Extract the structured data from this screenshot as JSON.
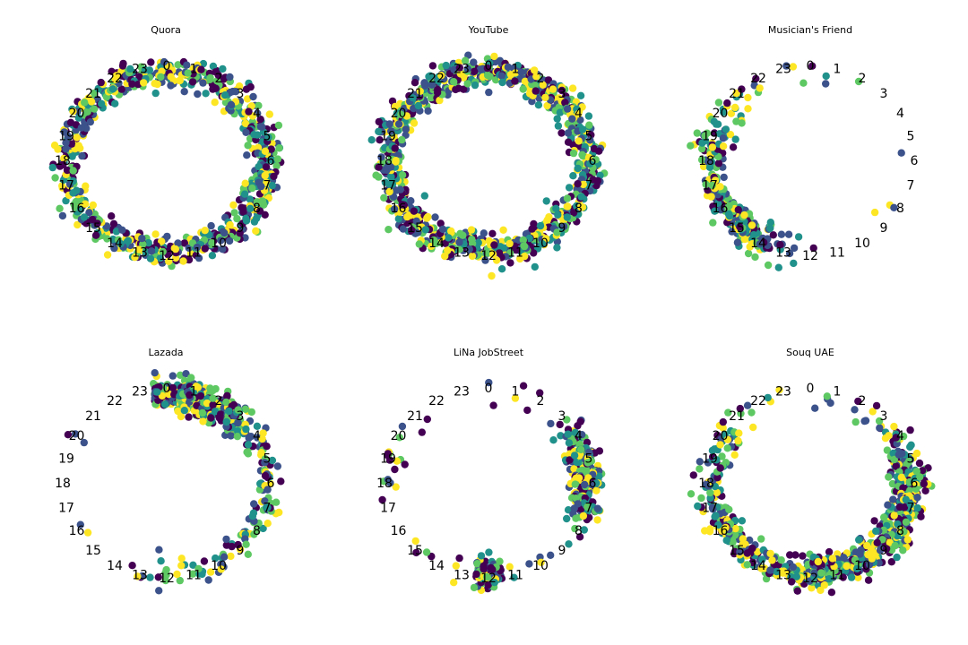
{
  "chart_data": {
    "type": "scatter",
    "description_axis": "hour of day arranged clockwise on a circle, 0 at top",
    "hour_labels": [
      "0",
      "1",
      "2",
      "3",
      "4",
      "5",
      "6",
      "7",
      "8",
      "9",
      "10",
      "11",
      "12",
      "13",
      "14",
      "15",
      "16",
      "17",
      "18",
      "19",
      "20",
      "21",
      "22",
      "23"
    ],
    "colormap": [
      "#440154",
      "#3b528b",
      "#21918c",
      "#5ec962",
      "#fde725"
    ],
    "panels": [
      {
        "title": "Quora",
        "hour_weights": [
          8,
          8,
          8,
          7,
          6,
          7,
          9,
          9,
          8,
          7,
          7,
          7,
          8,
          7,
          6,
          6,
          6,
          6,
          6,
          6,
          6,
          6,
          7,
          7
        ],
        "visit_count": 720
      },
      {
        "title": "YouTube",
        "hour_weights": [
          9,
          9,
          9,
          8,
          7,
          7,
          7,
          7,
          7,
          7,
          8,
          8,
          8,
          8,
          8,
          8,
          8,
          8,
          9,
          9,
          9,
          9,
          9,
          9
        ],
        "visit_count": 980
      },
      {
        "title": "Musician's Friend",
        "hour_weights": [
          0.3,
          0.2,
          0.1,
          0,
          0,
          0,
          0.1,
          0,
          0.2,
          0.1,
          0,
          0,
          0.1,
          1.5,
          6,
          8,
          6,
          4,
          3,
          3,
          2,
          1,
          0.5,
          0.3
        ],
        "visit_count": 300
      },
      {
        "title": "Lazada",
        "hour_weights": [
          9,
          12,
          10,
          6,
          2,
          1.5,
          1.5,
          1.5,
          1.5,
          1,
          1,
          1,
          1,
          0.5,
          0,
          0,
          0.2,
          0,
          0,
          0,
          0.3,
          0,
          0,
          0
        ],
        "visit_count": 520
      },
      {
        "title": "LiNa JobStreet",
        "hour_weights": [
          0.2,
          0.2,
          0.2,
          0.3,
          3,
          8,
          8,
          4,
          0.5,
          0.2,
          0.3,
          0.2,
          9,
          0.3,
          0.1,
          0.3,
          0,
          0.1,
          0.4,
          0.8,
          0.2,
          0.2,
          0,
          0
        ],
        "visit_count": 400
      },
      {
        "title": "Souq UAE",
        "hour_weights": [
          0.1,
          0.2,
          0.2,
          0.6,
          1.5,
          4,
          6,
          6,
          5,
          5,
          4,
          4,
          8,
          3,
          2,
          2.5,
          3,
          2,
          1.5,
          1.5,
          1.5,
          0.5,
          0.3,
          0.1
        ],
        "visit_count": 800
      }
    ]
  }
}
